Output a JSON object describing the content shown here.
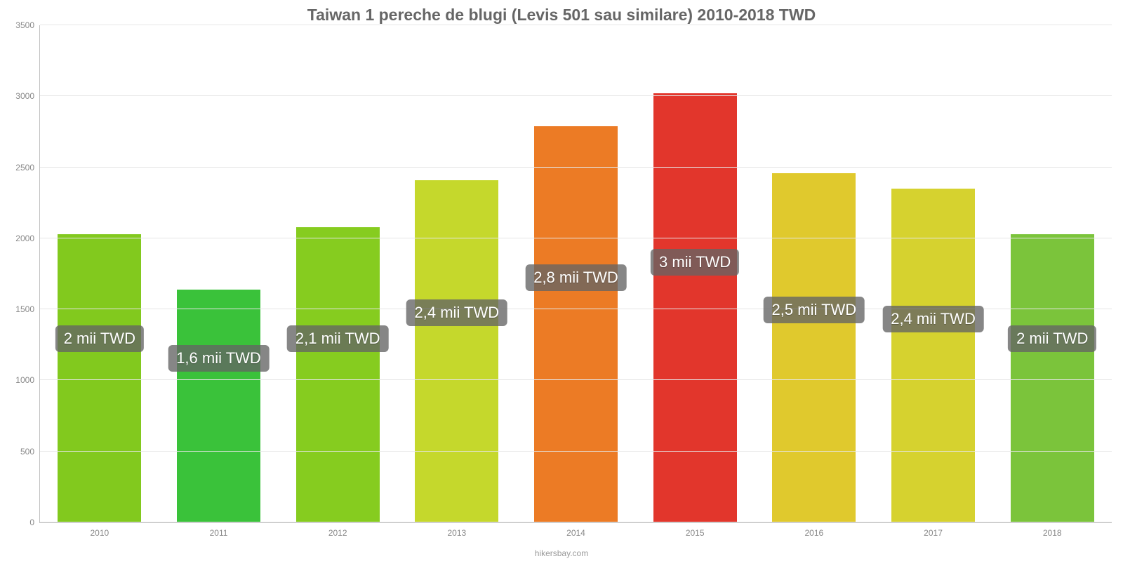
{
  "chart": {
    "type": "bar",
    "title": "Taiwan 1 pereche de blugi (Levis 501 sau similare) 2010-2018 TWD",
    "title_color": "#666666",
    "title_fontsize": 23,
    "attribution": "hikersbay.com",
    "background_color": "#ffffff",
    "grid_color": "#e6e6e6",
    "axis_color": "#c0c0c0",
    "tick_label_color": "#888888",
    "tick_fontsize": 12,
    "bar_width": 0.7,
    "ylim": [
      0,
      3500
    ],
    "ytick_step": 500,
    "yticks": [
      0,
      500,
      1000,
      1500,
      2000,
      2500,
      3000,
      3500
    ],
    "categories": [
      "2010",
      "2011",
      "2012",
      "2013",
      "2014",
      "2015",
      "2016",
      "2017",
      "2018"
    ],
    "values": [
      2030,
      1640,
      2080,
      2410,
      2790,
      3020,
      2460,
      2350,
      2030
    ],
    "value_labels": [
      "2 mii TWD",
      "1,6 mii TWD",
      "2,1 mii TWD",
      "2,4 mii TWD",
      "2,8 mii TWD",
      "3 mii TWD",
      "2,5 mii TWD",
      "2,4 mii TWD",
      "2 mii TWD"
    ],
    "bar_colors": [
      "#82c91e",
      "#3ac23a",
      "#86cc1f",
      "#c5d82c",
      "#ec7b25",
      "#e2362c",
      "#e0c92d",
      "#d6d22f",
      "#7bc43b"
    ],
    "value_badge": {
      "bg_color": "rgba(100,100,100,0.78)",
      "text_color": "#ffffff",
      "fontsize": 22,
      "border_radius": 6
    },
    "value_label_y_offsets": [
      1200,
      1060,
      1200,
      1380,
      1630,
      1740,
      1400,
      1340,
      1200
    ]
  }
}
